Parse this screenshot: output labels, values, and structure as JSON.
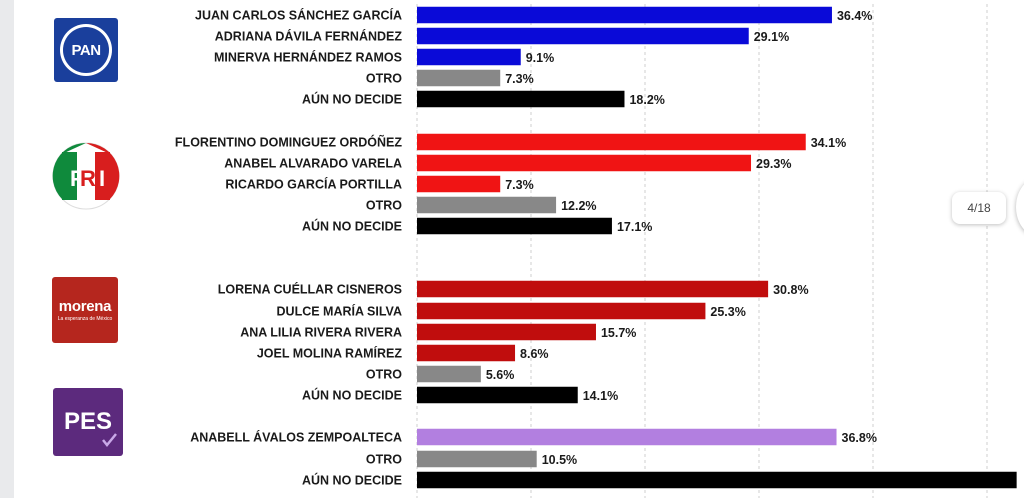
{
  "viewer": {
    "page_indicator": "4/18"
  },
  "logos": {
    "pan": {
      "label": "PAN",
      "color": "#1a3f9c"
    },
    "pri": {
      "label": "PRI"
    },
    "morena": {
      "label": "morena",
      "sublabel": "La esperanza de México",
      "color": "#b5261e"
    },
    "pes": {
      "label": "PES",
      "color": "#5c2a7d"
    }
  },
  "chart_data": {
    "type": "bar",
    "orientation": "horizontal",
    "grid": "vertical dashed",
    "groups": [
      {
        "party": "PAN",
        "bars": [
          {
            "label": "JUAN CARLOS SÁNCHEZ GARCÍA",
            "value": 36.4,
            "display": "36.4%",
            "color": "#0a0ad8"
          },
          {
            "label": "ADRIANA DÁVILA FERNÁNDEZ",
            "value": 29.1,
            "display": "29.1%",
            "color": "#0a0ad8"
          },
          {
            "label": "MINERVA HERNÁNDEZ RAMOS",
            "value": 9.1,
            "display": "9.1%",
            "color": "#0a0ad8"
          },
          {
            "label": "OTRO",
            "value": 7.3,
            "display": "7.3%",
            "color": "#888888"
          },
          {
            "label": "AÚN NO DECIDE",
            "value": 18.2,
            "display": "18.2%",
            "color": "#000000"
          }
        ]
      },
      {
        "party": "PRI",
        "bars": [
          {
            "label": "FLORENTINO DOMINGUEZ ORDÓÑEZ",
            "value": 34.1,
            "display": "34.1%",
            "color": "#f01414"
          },
          {
            "label": "ANABEL ALVARADO VARELA",
            "value": 29.3,
            "display": "29.3%",
            "color": "#f01414"
          },
          {
            "label": "RICARDO GARCÍA PORTILLA",
            "value": 7.3,
            "display": "7.3%",
            "color": "#f01414"
          },
          {
            "label": "OTRO",
            "value": 12.2,
            "display": "12.2%",
            "color": "#888888"
          },
          {
            "label": "AÚN NO DECIDE",
            "value": 17.1,
            "display": "17.1%",
            "color": "#000000"
          }
        ]
      },
      {
        "party": "MORENA",
        "bars": [
          {
            "label": "LORENA CUÉLLAR CISNEROS",
            "value": 30.8,
            "display": "30.8%",
            "color": "#c00d0d"
          },
          {
            "label": "DULCE MARÍA SILVA",
            "value": 25.3,
            "display": "25.3%",
            "color": "#c00d0d"
          },
          {
            "label": "ANA LILIA RIVERA RIVERA",
            "value": 15.7,
            "display": "15.7%",
            "color": "#c00d0d"
          },
          {
            "label": "JOEL MOLINA RAMÍREZ",
            "value": 8.6,
            "display": "8.6%",
            "color": "#c00d0d"
          },
          {
            "label": "OTRO",
            "value": 5.6,
            "display": "5.6%",
            "color": "#888888"
          },
          {
            "label": "AÚN NO DECIDE",
            "value": 14.1,
            "display": "14.1%",
            "color": "#000000"
          }
        ]
      },
      {
        "party": "PES",
        "bars": [
          {
            "label": "ANABELL ÁVALOS ZEMPOALTECA",
            "value": 36.8,
            "display": "36.8%",
            "color": "#b27fe0"
          },
          {
            "label": "OTRO",
            "value": 10.5,
            "display": "10.5%",
            "color": "#888888"
          },
          {
            "label": "AÚN NO DECIDE",
            "value": 52.6,
            "display": "",
            "color": "#000000"
          }
        ]
      }
    ]
  }
}
